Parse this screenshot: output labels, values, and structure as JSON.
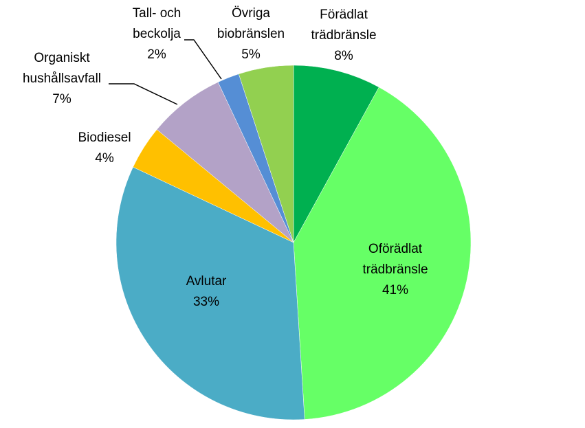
{
  "chart_data": {
    "type": "pie",
    "categories": [
      [
        "Förädlat",
        "trädbränsle"
      ],
      [
        "Oförädlat",
        "trädbränsle"
      ],
      [
        "Avlutar"
      ],
      [
        "Biodiesel"
      ],
      [
        "Organiskt",
        "hushållsavfall"
      ],
      [
        "Tall- och",
        "beckolja"
      ],
      [
        "Övriga",
        "biobränslen"
      ]
    ],
    "values": [
      8,
      41,
      33,
      4,
      7,
      2,
      5
    ],
    "value_labels": [
      "8%",
      "41%",
      "33%",
      "4%",
      "7%",
      "2%",
      "5%"
    ],
    "colors": [
      "#00b050",
      "#66ff66",
      "#4bacc6",
      "#ffc000",
      "#b3a2c7",
      "#558ed5",
      "#92d050"
    ]
  }
}
